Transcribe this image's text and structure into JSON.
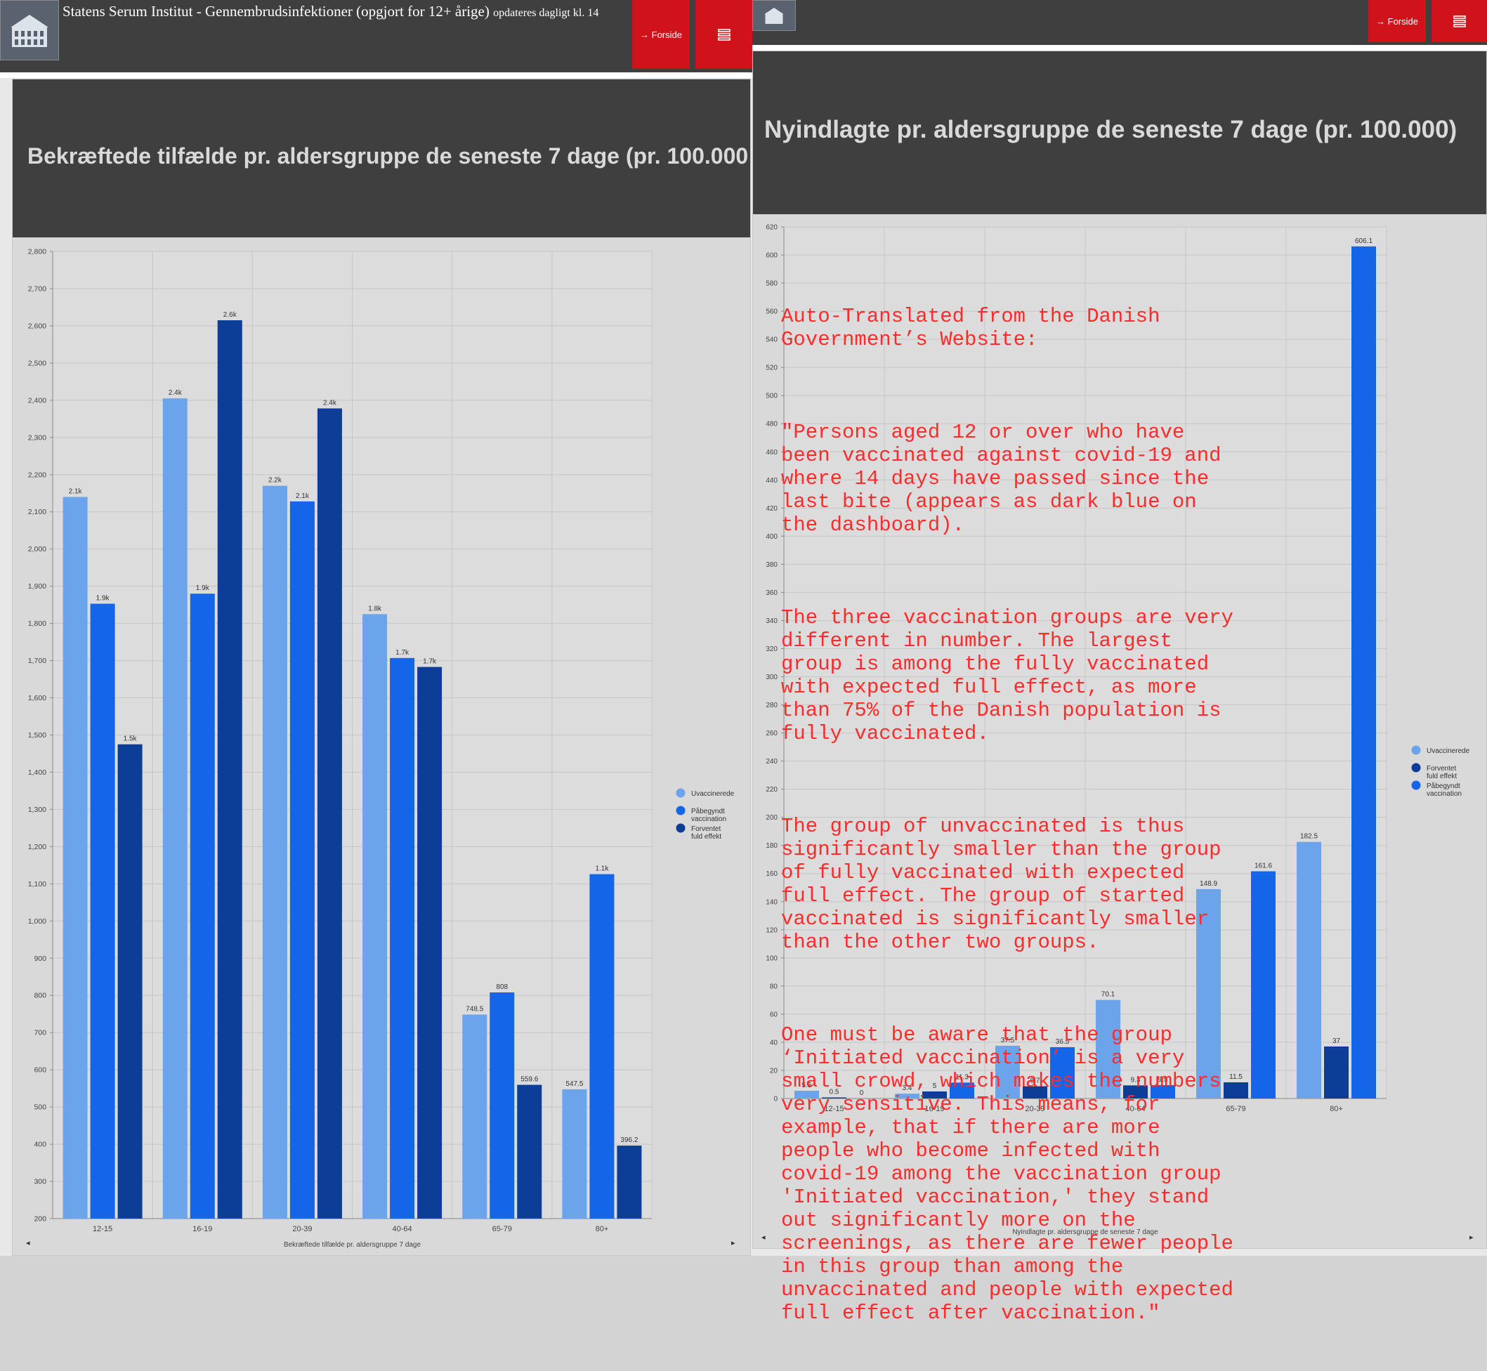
{
  "header_left": {
    "title": "Statens Serum Institut - Gennembrudsinfektioner (opgjort for 12+ årige)",
    "subtitle": "opdateres dagligt kl. 14",
    "home_button": "→ Forside",
    "menu_icon": "hamburger-icon",
    "logo_icon": "building-icon"
  },
  "header_right": {
    "home_button": "→ Forside",
    "menu_icon": "hamburger-icon",
    "logo_icon": "building-icon"
  },
  "colors": {
    "light": "#6ba4ea",
    "mid": "#1565e8",
    "dark": "#0c3e98",
    "header": "#3f3f3f",
    "button": "#d0121b",
    "overlay_text": "#ff2b2b"
  },
  "chart_data": [
    {
      "type": "bar",
      "title": "Bekræftede tilfælde pr. aldersgruppe de seneste 7 dage (pr. 100.000",
      "xlabel": "Bekræftede tilfælde pr. aldersgruppe 7 dage",
      "ylabel": "",
      "ylim": [
        200,
        2800
      ],
      "yticks": [
        "2,800",
        "2,700",
        "2,600",
        "2,500",
        "2,400",
        "2,300",
        "2,200",
        "2,100",
        "2,000",
        "1,900",
        "1,800",
        "1,700",
        "1,600",
        "1,500",
        "1,400",
        "1,300",
        "1,200",
        "1,100",
        "1,000",
        "900",
        "800",
        "700",
        "600",
        "500",
        "400",
        "300",
        "200"
      ],
      "categories": [
        "12-15",
        "16-19",
        "20-39",
        "40-64",
        "65-79",
        "80+"
      ],
      "series": [
        {
          "name": "Uvaccinerede",
          "color": "#6ba4ea",
          "values": [
            2140,
            2405,
            2170,
            1825,
            748.5,
            547.5
          ],
          "labels": [
            "2.1k",
            "2.4k",
            "2.2k",
            "1.8k",
            "748.5",
            "547.5"
          ]
        },
        {
          "name": "Påbegyndt vaccination",
          "color": "#1565e8",
          "values": [
            1853,
            1880,
            2128,
            1707,
            808,
            1126
          ],
          "labels": [
            "1.9k",
            "1.9k",
            "2.1k",
            "1.7k",
            "808",
            "1.1k"
          ]
        },
        {
          "name": "Forventet fuld effekt",
          "color": "#0c3e98",
          "values": [
            1475,
            2615,
            2378,
            1683,
            559.6,
            396.2
          ],
          "labels": [
            "1.5k",
            "2.6k",
            "2.4k",
            "1.7k",
            "559.6",
            "396.2"
          ]
        }
      ],
      "legend_position": "right",
      "grid": true
    },
    {
      "type": "bar",
      "title": "Nyindlagte pr. aldersgruppe de seneste 7 dage (pr. 100.000)",
      "xlabel": "Nyindlagte pr. aldersgruppe de seneste 7 dage",
      "ylabel": "",
      "ylim": [
        0,
        620
      ],
      "yticks": [
        "620",
        "600",
        "580",
        "560",
        "540",
        "520",
        "500",
        "480",
        "460",
        "440",
        "420",
        "400",
        "380",
        "360",
        "340",
        "320",
        "300",
        "280",
        "260",
        "240",
        "220",
        "200",
        "180",
        "160",
        "140",
        "120",
        "100",
        "80",
        "60",
        "40",
        "20",
        "0"
      ],
      "categories": [
        "12-15",
        "16-19",
        "20-39",
        "40-64",
        "65-79",
        "80+"
      ],
      "series": [
        {
          "name": "Uvaccinerede",
          "color": "#6ba4ea",
          "values": [
            5.5,
            3.4,
            37.5,
            70.1,
            148.9,
            182.5
          ],
          "labels": [
            "5.5",
            "3.4",
            "37.5",
            "70.1",
            "148.9",
            "182.5"
          ]
        },
        {
          "name": "Forventet fuld effekt",
          "color": "#0c3e98",
          "values": [
            0.5,
            5,
            8.7,
            9.3,
            11.5,
            37
          ],
          "labels": [
            "0.5",
            "5",
            "8.7",
            "9.3",
            "11.5",
            "37"
          ]
        },
        {
          "name": "Påbegyndt vaccination",
          "color": "#1565e8",
          "values": [
            0,
            11.3,
            36.5,
            9.5,
            161.6,
            606.1
          ],
          "labels": [
            "0",
            "11.3",
            "36.5",
            "9.5",
            "161.6",
            "606.1"
          ]
        }
      ],
      "legend_position": "right",
      "grid": true
    }
  ],
  "overlay": {
    "p1": "Auto-Translated from the Danish Government’s Website:",
    "p2": "\"Persons aged 12 or over who have been vaccinated against covid-19 and where 14 days have passed since the last bite (appears as dark blue on the dashboard).",
    "p3": "The three vaccination groups are very different in number. The largest group is among the fully vaccinated with expected full effect, as more than 75% of the Danish population is fully vaccinated.",
    "p4": "The group of unvaccinated is thus significantly smaller than the group of fully vaccinated with expected full effect. The group of started vaccinated is significantly smaller than the other two groups.",
    "p5": "One must be aware that the group ‘Initiated vaccination’ is a very small crowd, which makes the numbers very sensitive. This means, for example, that if there are more people who become infected with covid-19 among the vaccination group 'Initiated vaccination,' they stand out significantly more on the screenings, as there are fewer people in this group than among the unvaccinated and people with expected full effect after vaccination.\""
  }
}
